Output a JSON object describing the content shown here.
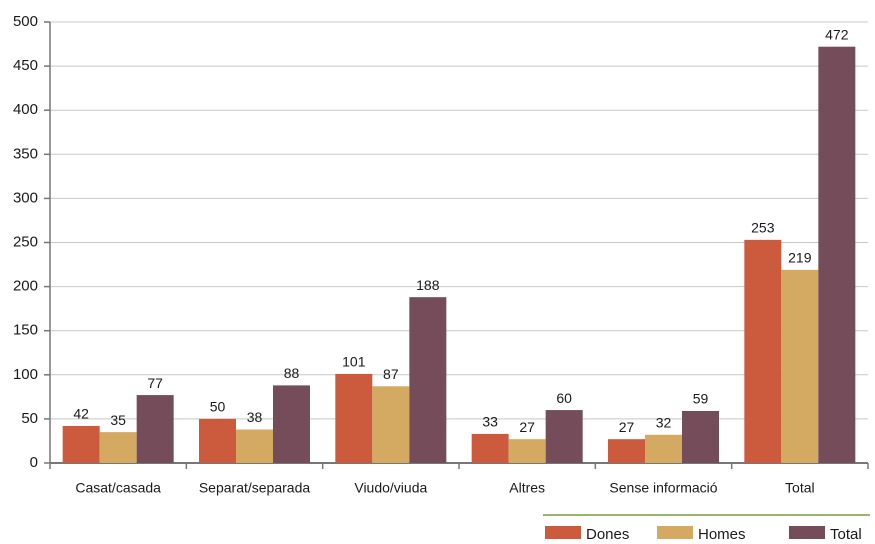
{
  "chart_data": {
    "type": "bar",
    "categories": [
      "Casat/casada",
      "Separat/separada",
      "Viudo/viuda",
      "Altres",
      "Sense informació",
      "Total"
    ],
    "series": [
      {
        "name": "Dones",
        "color": "#cc5a3c",
        "values": [
          42,
          50,
          101,
          33,
          27,
          253
        ]
      },
      {
        "name": "Homes",
        "color": "#d4aa63",
        "values": [
          35,
          38,
          87,
          27,
          32,
          219
        ]
      },
      {
        "name": "Total",
        "color": "#744c5a",
        "values": [
          77,
          88,
          188,
          60,
          59,
          472
        ]
      }
    ],
    "ylim": [
      0,
      500
    ],
    "yticks": [
      0,
      50,
      100,
      150,
      200,
      250,
      300,
      350,
      400,
      450,
      500
    ],
    "grid": true,
    "legend": "bottom-right"
  }
}
